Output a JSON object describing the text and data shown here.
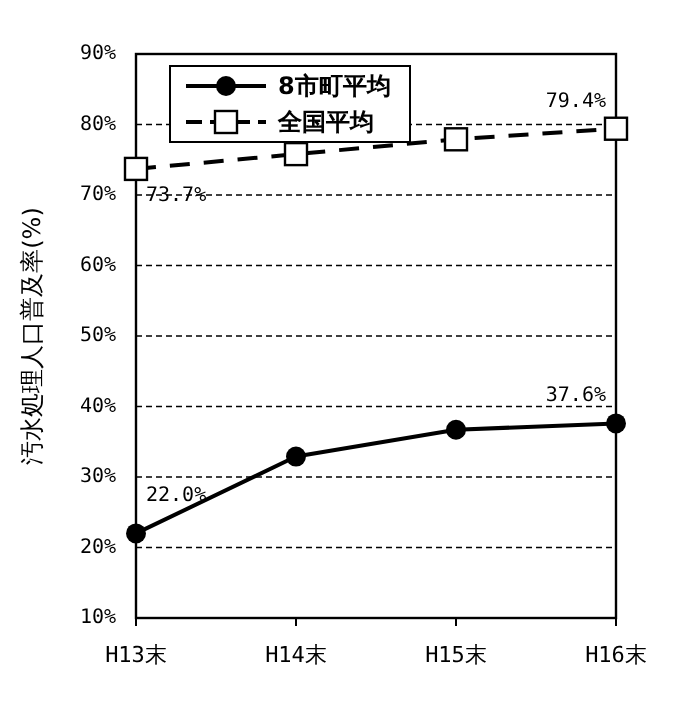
{
  "chart_data": {
    "type": "line",
    "ylabel": "汚水処理人口普及率(%)",
    "categories": [
      "H13末",
      "H14末",
      "H15末",
      "H16末"
    ],
    "series": [
      {
        "name": "8市町平均",
        "color": "#000000",
        "marker": "circle",
        "line_style": "solid",
        "values": [
          22.0,
          32.9,
          36.7,
          37.6
        ],
        "value_labels": [
          "22.0%",
          null,
          null,
          "37.6%"
        ]
      },
      {
        "name": "全国平均",
        "color": "#000000",
        "marker": "square",
        "line_style": "dashed",
        "values": [
          73.7,
          75.8,
          77.9,
          79.4
        ],
        "value_labels": [
          "73.7%",
          null,
          null,
          "79.4%"
        ]
      }
    ],
    "ylim": [
      10,
      90
    ],
    "yticks": [
      {
        "value": 10,
        "label": "10%"
      },
      {
        "value": 20,
        "label": "20%"
      },
      {
        "value": 30,
        "label": "30%"
      },
      {
        "value": 40,
        "label": "40%"
      },
      {
        "value": 50,
        "label": "50%"
      },
      {
        "value": 60,
        "label": "60%"
      },
      {
        "value": 70,
        "label": "70%"
      },
      {
        "value": 80,
        "label": "80%"
      },
      {
        "value": 90,
        "label": "90%"
      }
    ],
    "grid": "y",
    "legend": "top left"
  }
}
